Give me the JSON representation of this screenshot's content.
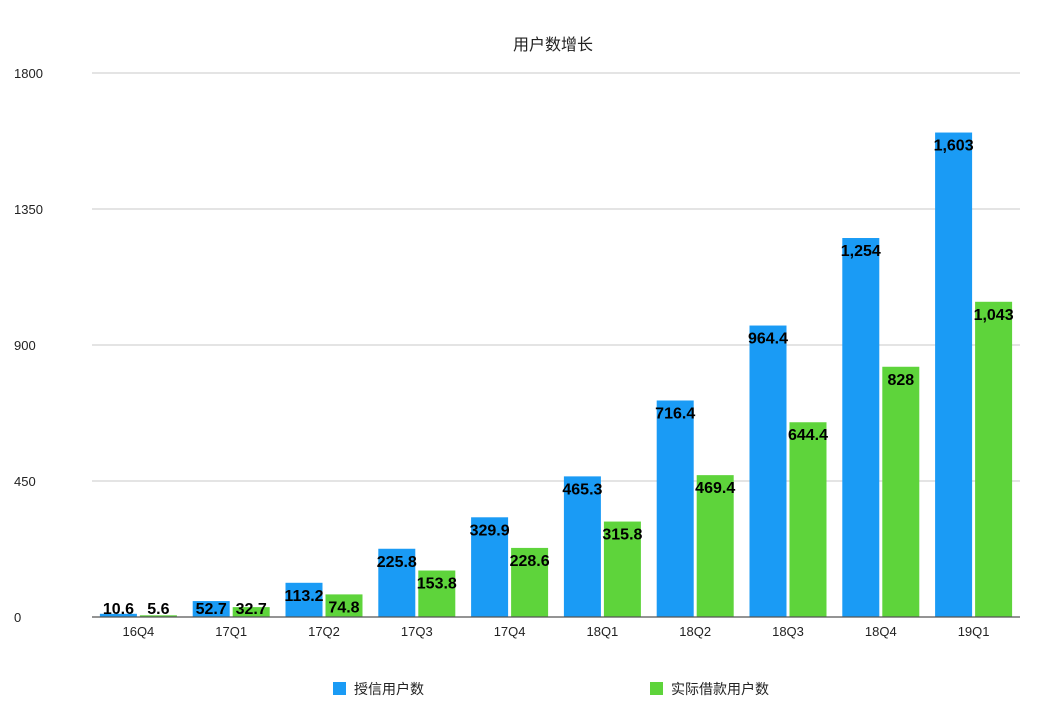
{
  "chart_data": {
    "type": "bar",
    "title": "用户数增长",
    "xlabel": "",
    "ylabel": "",
    "ylim": [
      0,
      1800
    ],
    "yticks": [
      0,
      450,
      900,
      1350,
      1800
    ],
    "ytick_labels": [
      "0",
      "450",
      "900",
      "1350",
      "1800"
    ],
    "grid": true,
    "legend_position": "bottom",
    "categories": [
      "16Q4",
      "17Q1",
      "17Q2",
      "17Q3",
      "17Q4",
      "18Q1",
      "18Q2",
      "18Q3",
      "18Q4",
      "19Q1"
    ],
    "series": [
      {
        "name": "授信用户数",
        "color": "#1A9BF5",
        "values": [
          10.6,
          52.7,
          113.2,
          225.8,
          329.9,
          465.3,
          716.4,
          964.4,
          1254,
          1603
        ],
        "labels": [
          "10.6",
          "52.7",
          "113.2",
          "225.8",
          "329.9",
          "465.3",
          "716.4",
          "964.4",
          "1,254",
          "1,603"
        ]
      },
      {
        "name": "实际借款用户数",
        "color": "#5ED43B",
        "values": [
          5.6,
          32.7,
          74.8,
          153.8,
          228.6,
          315.8,
          469.4,
          644.4,
          828,
          1043
        ],
        "labels": [
          "5.6",
          "32.7",
          "74.8",
          "153.8",
          "228.6",
          "315.8",
          "469.4",
          "644.4",
          "828",
          "1,043"
        ]
      }
    ]
  }
}
